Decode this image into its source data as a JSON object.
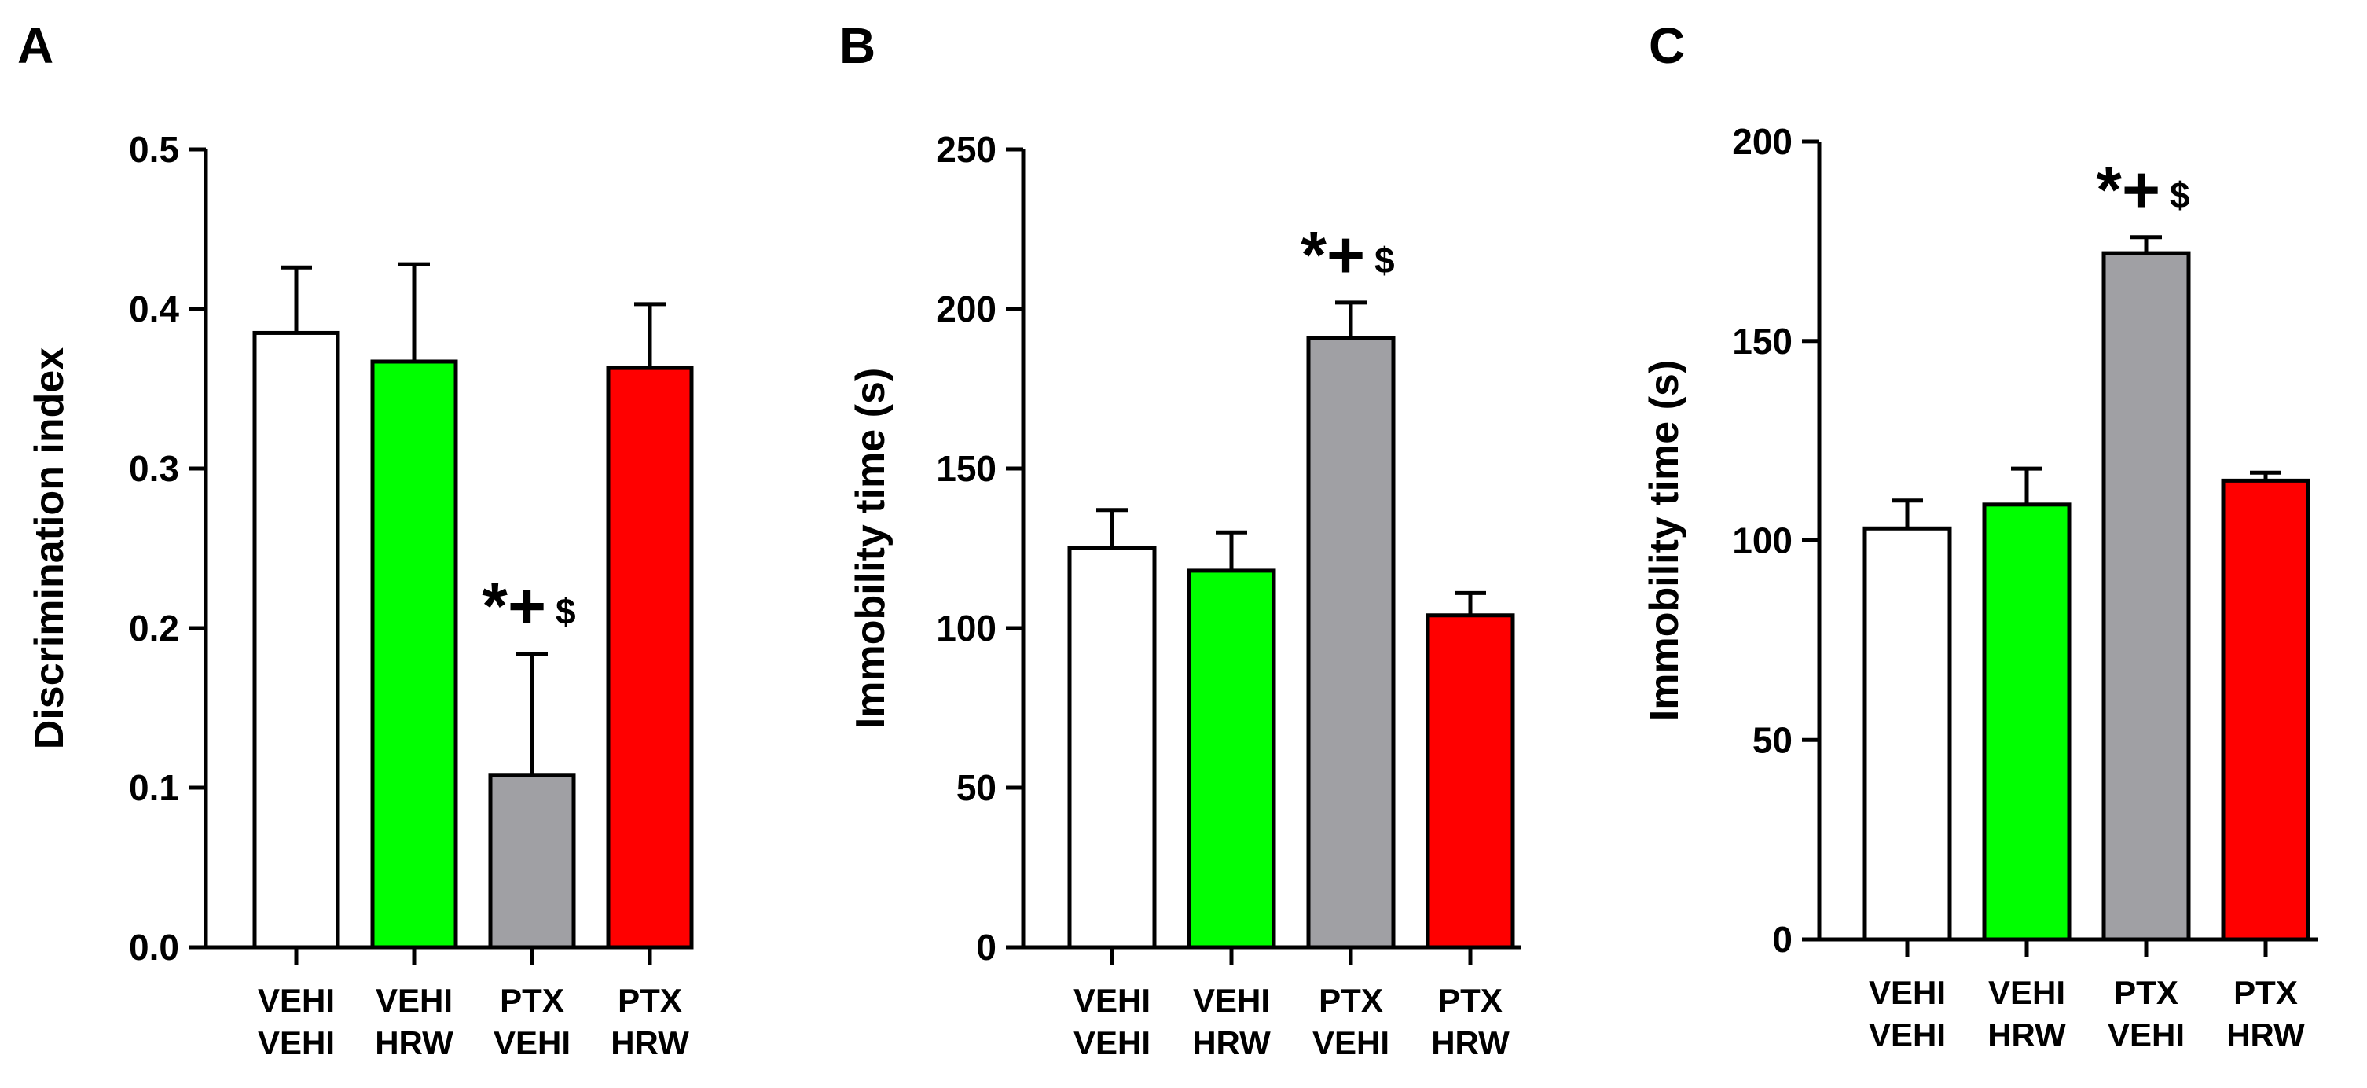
{
  "chart_data": [
    {
      "panel": "A",
      "type": "bar",
      "ylabel": "Discrimination index",
      "xlabel": "",
      "ylim": [
        0,
        0.5
      ],
      "yticks": [
        "0.0",
        "0.1",
        "0.2",
        "0.3",
        "0.4",
        "0.5"
      ],
      "categories": [
        [
          "VEHI",
          "VEHI"
        ],
        [
          "VEHI",
          "HRW"
        ],
        [
          "PTX",
          "VEHI"
        ],
        [
          "PTX",
          "HRW"
        ]
      ],
      "values": [
        0.385,
        0.367,
        0.108,
        0.363
      ],
      "errors": [
        0.041,
        0.061,
        0.076,
        0.04
      ],
      "colors": [
        "#ffffff",
        "#00ff00",
        "#a0a0a4",
        "#ff0000"
      ],
      "annotations": [
        {
          "bar": 2,
          "symbols": "*+",
          "extra": "$"
        }
      ]
    },
    {
      "panel": "B",
      "type": "bar",
      "ylabel": "Immobility time (s)",
      "xlabel": "",
      "ylim": [
        0,
        250
      ],
      "yticks": [
        "0",
        "50",
        "100",
        "150",
        "200",
        "250"
      ],
      "categories": [
        [
          "VEHI",
          "VEHI"
        ],
        [
          "VEHI",
          "HRW"
        ],
        [
          "PTX",
          "VEHI"
        ],
        [
          "PTX",
          "HRW"
        ]
      ],
      "values": [
        125,
        118,
        191,
        104
      ],
      "errors": [
        12,
        12,
        11,
        7
      ],
      "colors": [
        "#ffffff",
        "#00ff00",
        "#a0a0a4",
        "#ff0000"
      ],
      "annotations": [
        {
          "bar": 2,
          "symbols": "*+",
          "extra": "$"
        }
      ]
    },
    {
      "panel": "C",
      "type": "bar",
      "ylabel": "Immobility time (s)",
      "xlabel": "",
      "ylim": [
        0,
        200
      ],
      "yticks": [
        "0",
        "50",
        "100",
        "150",
        "200"
      ],
      "categories": [
        [
          "VEHI",
          "VEHI"
        ],
        [
          "VEHI",
          "HRW"
        ],
        [
          "PTX",
          "VEHI"
        ],
        [
          "PTX",
          "HRW"
        ]
      ],
      "values": [
        103,
        109,
        172,
        115
      ],
      "errors": [
        7,
        9,
        4,
        2
      ],
      "colors": [
        "#ffffff",
        "#00ff00",
        "#a0a0a4",
        "#ff0000"
      ],
      "annotations": [
        {
          "bar": 2,
          "symbols": "*+",
          "extra": "$"
        }
      ]
    }
  ]
}
